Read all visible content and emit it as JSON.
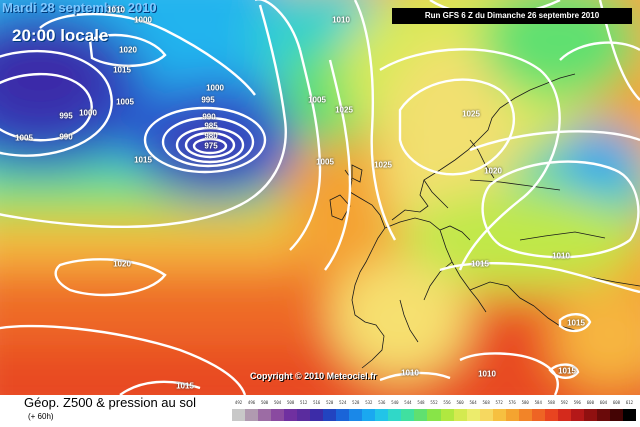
{
  "map": {
    "date_label": "Mardi 28 septembre 2010",
    "time_label": "20:00 locale",
    "run_label": "Run GFS 6 Z du Dimanche 26 septembre 2010",
    "copyright": "Copyright © 2010 Meteociel.fr"
  },
  "isobar_labels": [
    {
      "value": "1010"
    },
    {
      "value": "1020"
    },
    {
      "value": "1015"
    },
    {
      "value": "1000"
    },
    {
      "value": "1005"
    },
    {
      "value": "995"
    },
    {
      "value": "1000"
    },
    {
      "value": "990"
    },
    {
      "value": "985"
    },
    {
      "value": "980"
    },
    {
      "value": "975"
    },
    {
      "value": "990"
    },
    {
      "value": "995"
    },
    {
      "value": "1000"
    },
    {
      "value": "1005"
    },
    {
      "value": "1010"
    },
    {
      "value": "1015"
    },
    {
      "value": "1005"
    },
    {
      "value": "1025"
    },
    {
      "value": "1025"
    },
    {
      "value": "1020"
    },
    {
      "value": "1005"
    },
    {
      "value": "1010"
    },
    {
      "value": "1015"
    },
    {
      "value": "1025"
    },
    {
      "value": "1020"
    },
    {
      "value": "1015"
    },
    {
      "value": "1010"
    },
    {
      "value": "1015"
    },
    {
      "value": "1010"
    },
    {
      "value": "1015"
    }
  ],
  "footer": {
    "title": "Géop. Z500 & pression au sol",
    "subtitle": "(+ 60h)"
  },
  "legend": {
    "values": [
      "492",
      "496",
      "500",
      "504",
      "508",
      "512",
      "516",
      "520",
      "524",
      "528",
      "532",
      "536",
      "540",
      "544",
      "548",
      "552",
      "556",
      "560",
      "564",
      "568",
      "572",
      "576",
      "580",
      "584",
      "588",
      "592",
      "596",
      "600",
      "604",
      "608",
      "612"
    ],
    "colors": [
      "#c8c8c8",
      "#b09ab0",
      "#9c6ca4",
      "#8a4aa0",
      "#7030a0",
      "#5a2c9e",
      "#3c2ca8",
      "#2244c0",
      "#1a64d8",
      "#1a88e8",
      "#1aa8f0",
      "#22c4e8",
      "#30d8c8",
      "#40e0a0",
      "#60e070",
      "#88e448",
      "#b0e840",
      "#d4ea50",
      "#ecec6c",
      "#f6d860",
      "#f6c040",
      "#f4a430",
      "#f28428",
      "#ee6424",
      "#e84420",
      "#d42a1c",
      "#b41818",
      "#901010",
      "#6a0a0a",
      "#440404",
      "#000000"
    ]
  }
}
